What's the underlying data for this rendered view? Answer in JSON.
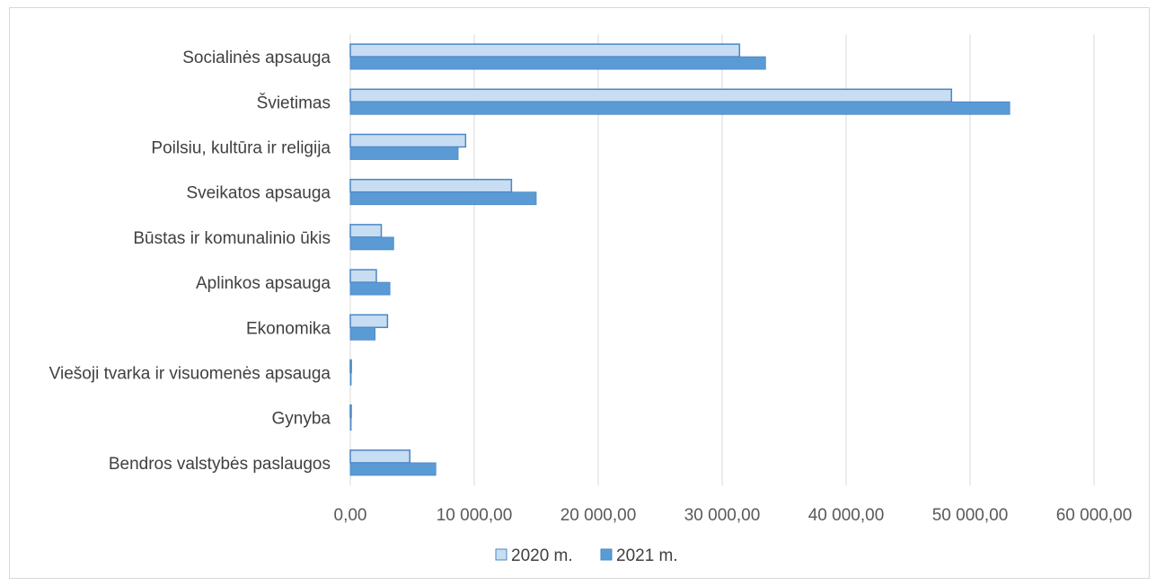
{
  "chart_data": {
    "type": "bar",
    "orientation": "horizontal",
    "categories": [
      "Socialinės apsauga",
      "Švietimas",
      "Poilsiu, kultūra ir religija",
      "Sveikatos apsauga",
      "Būstas ir komunalinio ūkis",
      "Aplinkos apsauga",
      "Ekonomika",
      "Viešoji tvarka ir visuomenės apsauga",
      "Gynyba",
      "Bendros valstybės paslaugos"
    ],
    "series": [
      {
        "name": "2020 m.",
        "values": [
          31400,
          48500,
          9300,
          13000,
          2500,
          2100,
          3000,
          80,
          60,
          4800
        ],
        "color": "#c7ddf2"
      },
      {
        "name": "2021 m.",
        "values": [
          33500,
          53200,
          8700,
          15000,
          3500,
          3200,
          2000,
          40,
          40,
          6900
        ],
        "color": "#5b9bd5"
      }
    ],
    "xlim": [
      0,
      60000
    ],
    "x_ticks": [
      0,
      10000,
      20000,
      30000,
      40000,
      50000,
      60000
    ],
    "x_tick_labels": [
      "0,00",
      "10 000,00",
      "20 000,00",
      "30 000,00",
      "40 000,00",
      "50 000,00",
      "60 000,00"
    ],
    "grid": "vertical",
    "legend_position": "bottom",
    "title": "",
    "xlabel": "",
    "ylabel": ""
  },
  "colors": {
    "grid": "#d9d9d9",
    "bar_outline": "#4a86c5",
    "series_2020": "#c7ddf2",
    "series_2021": "#5b9bd5"
  }
}
